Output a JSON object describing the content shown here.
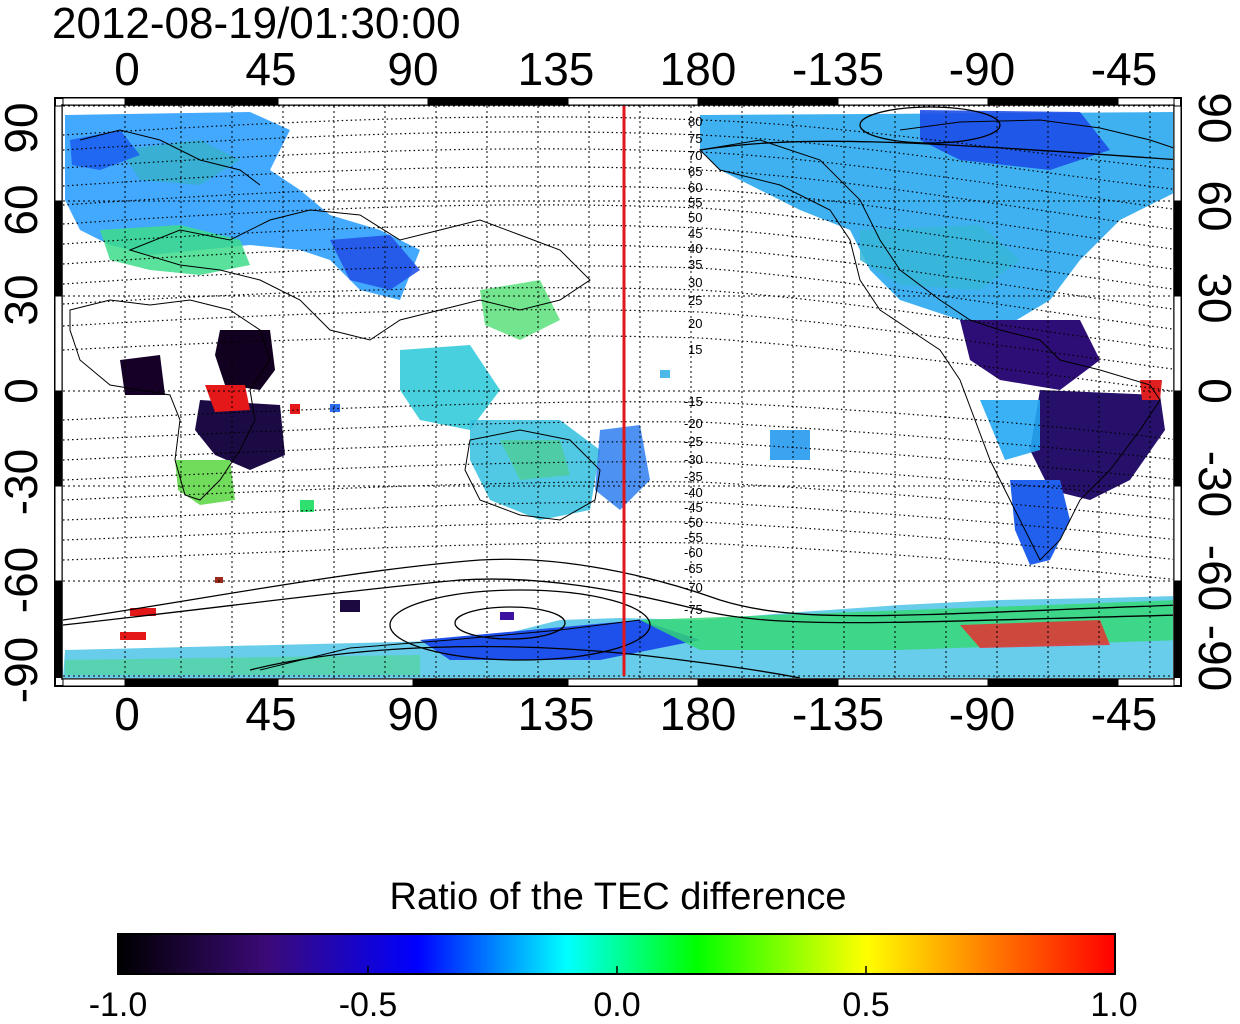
{
  "timestamp": "2012-08-19/01:30:00",
  "map": {
    "lon_ticks": [
      "0",
      "45",
      "90",
      "135",
      "180",
      "-135",
      "-90",
      "-45"
    ],
    "lat_ticks": [
      "90",
      "60",
      "30",
      "0",
      "-30",
      "-60",
      "-90"
    ],
    "magnetic_latitude_labels_north": [
      "80",
      "75",
      "70",
      "65",
      "60",
      "55",
      "50",
      "45",
      "40",
      "35",
      "30",
      "25",
      "20",
      "15"
    ],
    "magnetic_latitude_labels_south": [
      "-15",
      "-20",
      "-25",
      "-30",
      "-35",
      "-40",
      "-45",
      "-50",
      "-55",
      "-60",
      "-65",
      "-70",
      "-75"
    ],
    "marker_longitude_deg": 157,
    "marker_color": "#e0161b"
  },
  "colorbar": {
    "title": "Ratio of the TEC difference",
    "ticks": [
      "-1.0",
      "-0.5",
      "0.0",
      "0.5",
      "1.0"
    ],
    "range": [
      -1.0,
      1.0
    ],
    "colors": [
      "#000000",
      "#3b0a78",
      "#0000ff",
      "#00ffff",
      "#00ff00",
      "#ffff00",
      "#ff8000",
      "#ff0000"
    ]
  }
}
